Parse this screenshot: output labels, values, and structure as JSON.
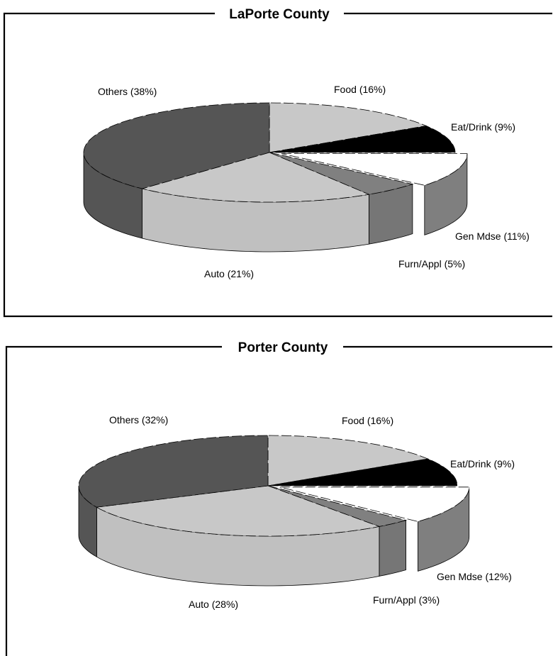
{
  "chart_data": [
    {
      "type": "pie",
      "title": "LaPorte County",
      "slices": [
        {
          "label": "Food",
          "pct_text": "(16%)",
          "value": 16,
          "color": "#c8c8c8"
        },
        {
          "label": "Eat/Drink",
          "pct_text": "(9%)",
          "value": 9,
          "color": "#000000"
        },
        {
          "label": "Gen Mdse",
          "pct_text": "(11%)",
          "value": 11,
          "color": "#ffffff"
        },
        {
          "label": "Furn/Appl",
          "pct_text": "(5%)",
          "value": 5,
          "color": "#808080"
        },
        {
          "label": "Auto",
          "pct_text": "(21%)",
          "value": 21,
          "color": "#c8c8c8"
        },
        {
          "label": "Others",
          "pct_text": "(38%)",
          "value": 38,
          "color": "#555555"
        }
      ]
    },
    {
      "type": "pie",
      "title": "Porter County",
      "slices": [
        {
          "label": "Food",
          "pct_text": "(16%)",
          "value": 16,
          "color": "#c8c8c8"
        },
        {
          "label": "Eat/Drink",
          "pct_text": "(9%)",
          "value": 9,
          "color": "#000000"
        },
        {
          "label": "Gen Mdse",
          "pct_text": "(12%)",
          "value": 12,
          "color": "#ffffff"
        },
        {
          "label": "Furn/Appl",
          "pct_text": "(3%)",
          "value": 3,
          "color": "#808080"
        },
        {
          "label": "Auto",
          "pct_text": "(28%)",
          "value": 28,
          "color": "#c8c8c8"
        },
        {
          "label": "Others",
          "pct_text": "(32%)",
          "value": 32,
          "color": "#555555"
        }
      ]
    }
  ]
}
